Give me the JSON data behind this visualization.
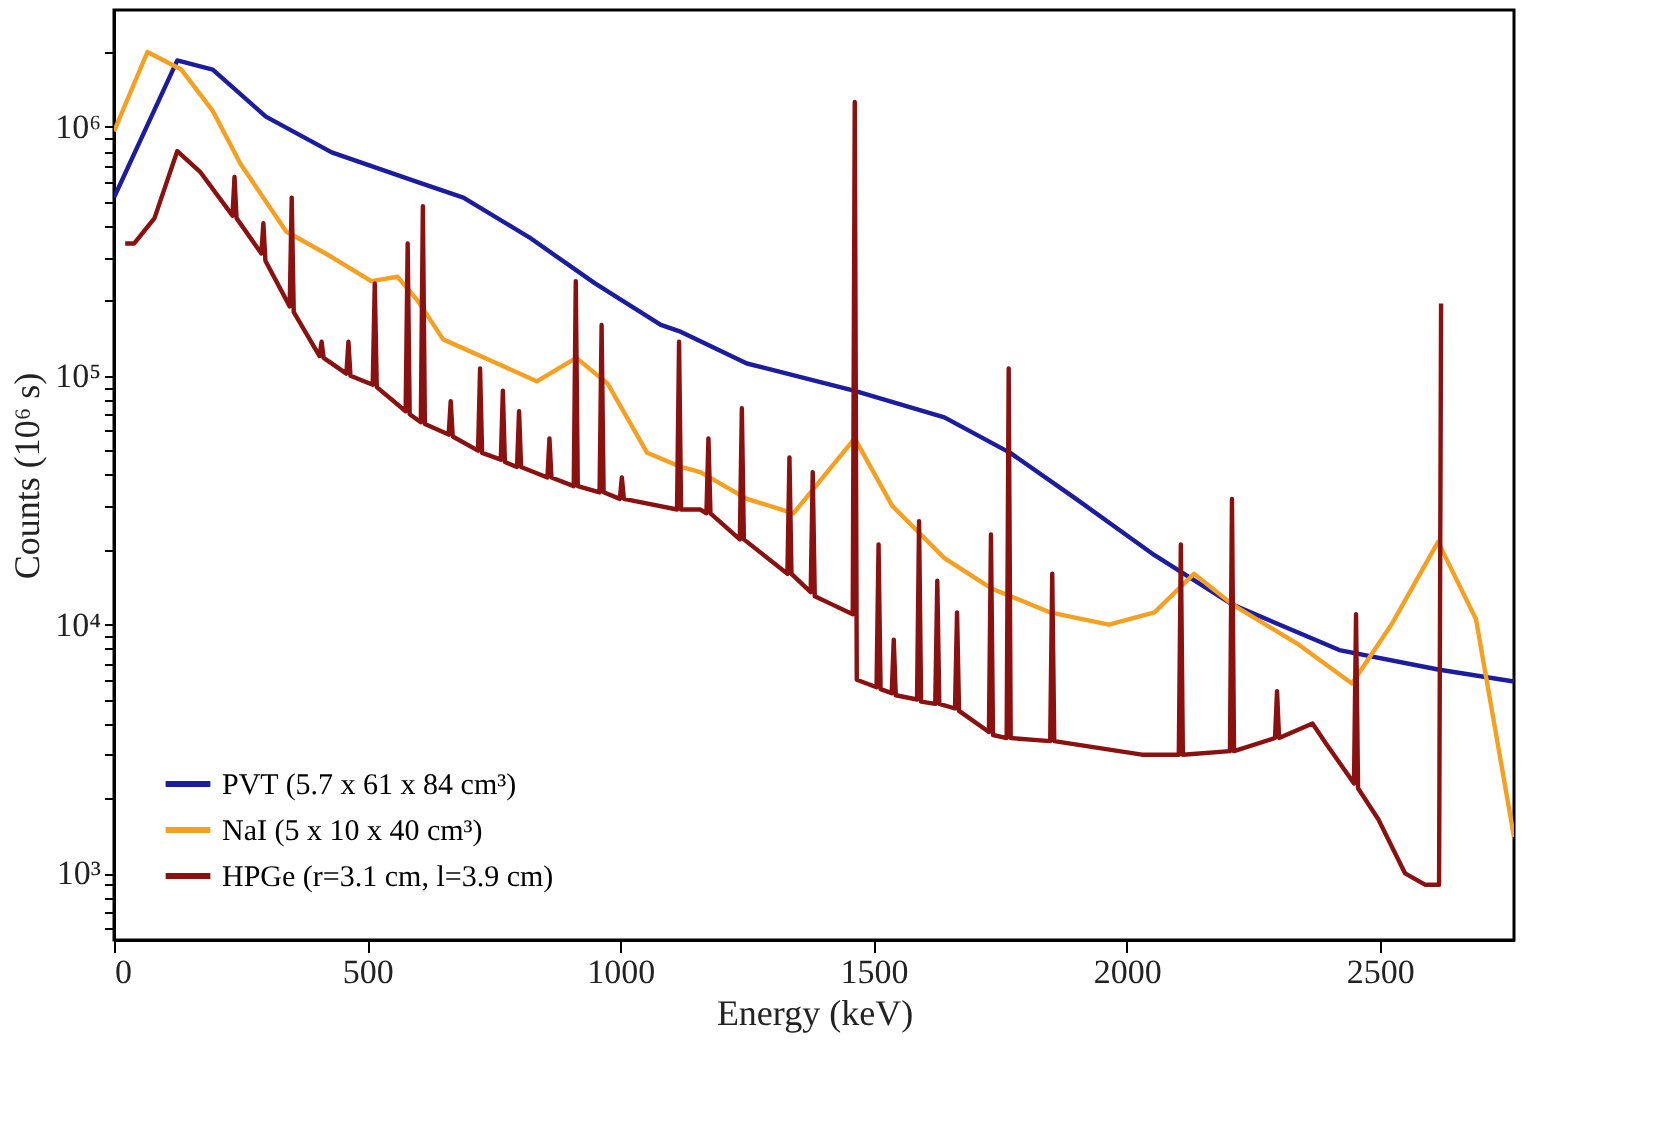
{
  "chart_data": {
    "type": "line",
    "xlabel": "Energy (keV)",
    "ylabel": "Counts (10⁶ s)",
    "xlim": [
      0,
      2765
    ],
    "xticks": [
      0,
      500,
      1000,
      1500,
      2000,
      2500
    ],
    "ylim": [
      540,
      2950000
    ],
    "log": "y",
    "yticks": [
      {
        "value": 600,
        "label": null
      },
      {
        "value": 700,
        "label": null
      },
      {
        "value": 800,
        "label": null
      },
      {
        "value": 900,
        "label": null
      },
      {
        "value": 1000,
        "label": "10³"
      },
      {
        "value": 2000,
        "label": null
      },
      {
        "value": 3000,
        "label": null
      },
      {
        "value": 4000,
        "label": null
      },
      {
        "value": 5000,
        "label": null
      },
      {
        "value": 6000,
        "label": null
      },
      {
        "value": 7000,
        "label": null
      },
      {
        "value": 8000,
        "label": null
      },
      {
        "value": 9000,
        "label": null
      },
      {
        "value": 10000,
        "label": "10⁴"
      },
      {
        "value": 20000,
        "label": null
      },
      {
        "value": 30000,
        "label": null
      },
      {
        "value": 40000,
        "label": null
      },
      {
        "value": 50000,
        "label": null
      },
      {
        "value": 60000,
        "label": null
      },
      {
        "value": 70000,
        "label": null
      },
      {
        "value": 80000,
        "label": null
      },
      {
        "value": 90000,
        "label": null
      },
      {
        "value": 100000,
        "label": "10⁵"
      },
      {
        "value": 200000,
        "label": null
      },
      {
        "value": 300000,
        "label": null
      },
      {
        "value": 400000,
        "label": null
      },
      {
        "value": 500000,
        "label": null
      },
      {
        "value": 600000,
        "label": null
      },
      {
        "value": 700000,
        "label": null
      },
      {
        "value": 800000,
        "label": null
      },
      {
        "value": 900000,
        "label": null
      },
      {
        "value": 1000000,
        "label": "10⁶"
      },
      {
        "value": 2000000,
        "label": null
      }
    ],
    "grid": false,
    "legend": "bottom left",
    "marker": "none",
    "line_style": "solid",
    "series": [
      {
        "name": "PVT (5.7 x 61 x 84 cm³)",
        "color": "#1c1ca0",
        "x": [
          0,
          125,
          195,
          300,
          430,
          600,
          690,
          820,
          950,
          1080,
          1120,
          1250,
          1463,
          1640,
          1770,
          1900,
          2055,
          2210,
          2420,
          2615,
          2765
        ],
        "values": [
          520000,
          1850000,
          1700000,
          1100000,
          790000,
          600000,
          520000,
          360000,
          235000,
          160000,
          150000,
          112000,
          87000,
          68000,
          49000,
          32000,
          19000,
          12000,
          7900,
          6600,
          5900
        ]
      },
      {
        "name": "NaI (5 x 10 x 40 cm³)",
        "color": "#f5a020",
        "x": [
          0,
          66,
          133,
          195,
          250,
          340,
          430,
          508,
          560,
          600,
          650,
          757,
          835,
          913,
          975,
          1053,
          1120,
          1158,
          1250,
          1342,
          1463,
          1537,
          1640,
          1732,
          1848,
          1965,
          2055,
          2133,
          2210,
          2340,
          2445,
          2523,
          2615,
          2690,
          2765
        ],
        "values": [
          960000,
          2000000,
          1700000,
          1160000,
          710000,
          380000,
          300000,
          240000,
          250000,
          200000,
          140000,
          112000,
          95000,
          118000,
          93000,
          49000,
          43000,
          41000,
          32000,
          28000,
          56000,
          30000,
          18500,
          14000,
          11200,
          10000,
          11200,
          16000,
          12000,
          8300,
          5800,
          10000,
          21500,
          10500,
          1400
        ]
      },
      {
        "name": "HPGe (r=3.1 cm, l=3.9 cm)",
        "color": "#8b1010",
        "x": [
          22,
          40,
          80,
          125,
          170,
          234,
          238,
          242,
          291,
          295,
          299,
          347,
          351,
          355,
          406,
          410,
          414,
          459,
          463,
          467,
          511,
          515,
          519,
          576,
          580,
          584,
          606,
          610,
          614,
          661,
          665,
          669,
          719,
          723,
          727,
          764,
          768,
          772,
          796,
          800,
          804,
          856,
          860,
          864,
          908,
          912,
          916,
          959,
          963,
          967,
          999,
          1003,
          1007,
          1112,
          1116,
          1120,
          1158,
          1170,
          1174,
          1178,
          1236,
          1240,
          1244,
          1330,
          1334,
          1338,
          1376,
          1380,
          1384,
          1420,
          1459,
          1463,
          1467,
          1506,
          1510,
          1514,
          1536,
          1540,
          1544,
          1586,
          1590,
          1594,
          1622,
          1626,
          1630,
          1661,
          1665,
          1669,
          1728,
          1732,
          1736,
          1763,
          1767,
          1771,
          1849,
          1853,
          1857,
          2030,
          2103,
          2107,
          2111,
          2204,
          2208,
          2212,
          2293,
          2297,
          2301,
          2367,
          2395,
          2449,
          2453,
          2457,
          2497,
          2550,
          2590,
          2617,
          2621
        ],
        "values": [
          340000,
          340000,
          430000,
          800000,
          660000,
          440000,
          630000,
          430000,
          310000,
          410000,
          290000,
          190000,
          520000,
          180000,
          120000,
          137000,
          118000,
          102000,
          137000,
          100000,
          92000,
          235000,
          90000,
          72000,
          340000,
          70000,
          65000,
          480000,
          64000,
          58000,
          79000,
          57000,
          50000,
          107000,
          49000,
          46000,
          87000,
          45000,
          43000,
          72000,
          43000,
          39000,
          56000,
          39000,
          36000,
          240000,
          36000,
          34000,
          160000,
          34000,
          32000,
          39000,
          32000,
          29000,
          137000,
          29000,
          29000,
          28000,
          56000,
          28000,
          22000,
          74000,
          22000,
          16000,
          47000,
          16000,
          13500,
          41000,
          13000,
          12000,
          11000,
          1260000,
          6000,
          5600,
          21000,
          5500,
          5300,
          8700,
          5200,
          5000,
          26000,
          4900,
          4800,
          15000,
          4800,
          4600,
          11200,
          4500,
          3700,
          23000,
          3600,
          3500,
          107000,
          3500,
          3400,
          16000,
          3400,
          3000,
          3000,
          21000,
          3000,
          3100,
          32000,
          3100,
          3500,
          5400,
          3500,
          4000,
          3300,
          2300,
          11000,
          2200,
          1650,
          1000,
          900,
          900,
          195000
        ]
      }
    ]
  }
}
